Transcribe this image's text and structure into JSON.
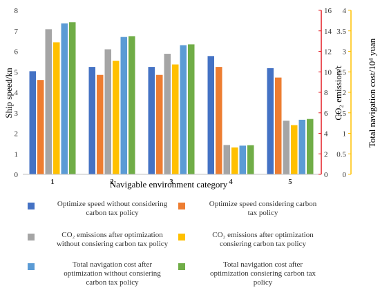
{
  "chart_data": {
    "type": "bar",
    "categories": [
      "1",
      "2",
      "3",
      "4",
      "5"
    ],
    "xlabel": "Navigable environment category",
    "ylabel_left": "Ship speed/kn",
    "ylabel_right1": "CO₂ emission/t",
    "ylabel_right2": "Total navigation cost/10⁴ yuan",
    "axes": {
      "left": {
        "ylim": [
          0,
          8
        ],
        "ticks": [
          "0",
          "1",
          "2",
          "3",
          "4",
          "5",
          "6",
          "7",
          "8"
        ],
        "color": "#000000"
      },
      "right1": {
        "ylim": [
          0,
          16
        ],
        "ticks": [
          "0",
          "2",
          "4",
          "6",
          "8",
          "10",
          "12",
          "14",
          "16"
        ],
        "color": "#e31b23"
      },
      "right2": {
        "ylim": [
          0,
          4
        ],
        "ticks": [
          "0",
          "0.5",
          "1",
          "1.5",
          "2",
          "2.5",
          "3",
          "3.5",
          "4"
        ],
        "color": "#ffc000"
      }
    },
    "grid": false,
    "legend_position": "bottom",
    "series": [
      {
        "name": "Optimize speed without considering carbon tax policy",
        "axis": "left",
        "color": "#4472c4",
        "values": [
          5.03,
          5.24,
          5.24,
          5.77,
          5.18
        ]
      },
      {
        "name": "Optimize speed considering carbon tax policy",
        "axis": "left",
        "color": "#ed7d31",
        "values": [
          4.6,
          4.85,
          4.85,
          5.24,
          4.72
        ]
      },
      {
        "name": "CO₂ emissions after optimization without consiering carbon tax policy",
        "axis": "right1",
        "color": "#a5a5a5",
        "values": [
          14.16,
          12.2,
          11.76,
          2.86,
          5.24
        ]
      },
      {
        "name": "CO₂ emissions after optimization consiering carbon tax policy",
        "axis": "right1",
        "color": "#ffc000",
        "values": [
          12.88,
          11.08,
          10.72,
          2.62,
          4.8
        ]
      },
      {
        "name": "Total navigation cost after optimization without consiering carbon tax policy",
        "axis": "right2",
        "color": "#5b9bd5",
        "values": [
          3.68,
          3.35,
          3.15,
          0.7,
          1.33
        ]
      },
      {
        "name": "Total navigation cost after optimization consiering carbon tax policy",
        "axis": "right2",
        "color": "#70ad47",
        "values": [
          3.71,
          3.37,
          3.17,
          0.71,
          1.35
        ]
      }
    ]
  },
  "legend": [
    {
      "lines": [
        "Optimize speed without considering",
        "carbon tax policy"
      ]
    },
    {
      "lines": [
        "Optimize speed considering carbon",
        "tax policy"
      ]
    },
    {
      "lines": [
        "CO₂ emissions after optimization",
        "without consiering carbon tax policy"
      ]
    },
    {
      "lines": [
        "CO₂ emissions after optimization",
        "consiering carbon tax policy"
      ]
    },
    {
      "lines": [
        "Total navigation cost after",
        "optimization without consiering",
        "carbon tax policy"
      ]
    },
    {
      "lines": [
        "Total navigation cost after",
        "optimization consiering carbon tax",
        "policy"
      ]
    }
  ]
}
